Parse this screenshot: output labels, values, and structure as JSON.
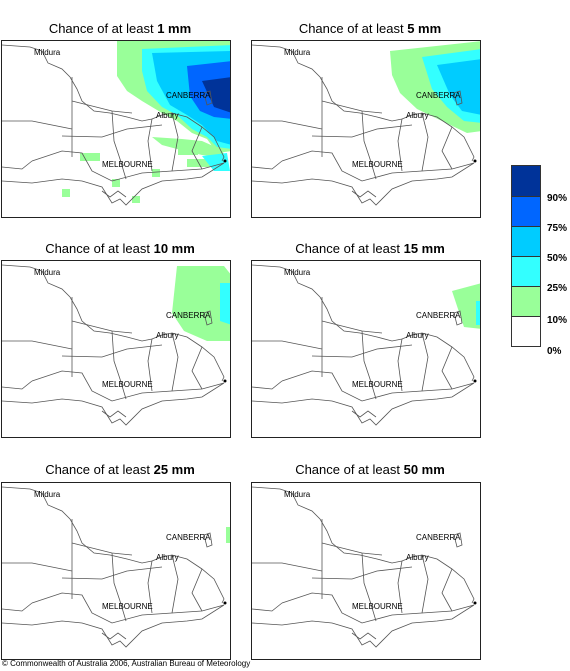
{
  "panels": [
    {
      "title_prefix": "Chance of at least ",
      "amount": "1 mm",
      "level": "1"
    },
    {
      "title_prefix": "Chance of at least ",
      "amount": "5 mm",
      "level": "5"
    },
    {
      "title_prefix": "Chance of at least ",
      "amount": "10 mm",
      "level": "10"
    },
    {
      "title_prefix": "Chance of at least ",
      "amount": "15 mm",
      "level": "15"
    },
    {
      "title_prefix": "Chance of at least ",
      "amount": "25 mm",
      "level": "25"
    },
    {
      "title_prefix": "Chance of at least ",
      "amount": "50 mm",
      "level": "50"
    }
  ],
  "places": {
    "mildura": "Mildura",
    "canberra": "CANBERRA",
    "albury": "Albury",
    "melbourne": "MELBOURNE"
  },
  "legend": {
    "labels": [
      "90%",
      "75%",
      "50%",
      "25%",
      "10%",
      "0%"
    ],
    "colors": [
      "#003399",
      "#0066ff",
      "#00ccff",
      "#33ffff",
      "#99ff99",
      "#ffffff"
    ]
  },
  "copyright": "© Commonwealth of Australia 2006, Australian Bureau of Meteorology"
}
